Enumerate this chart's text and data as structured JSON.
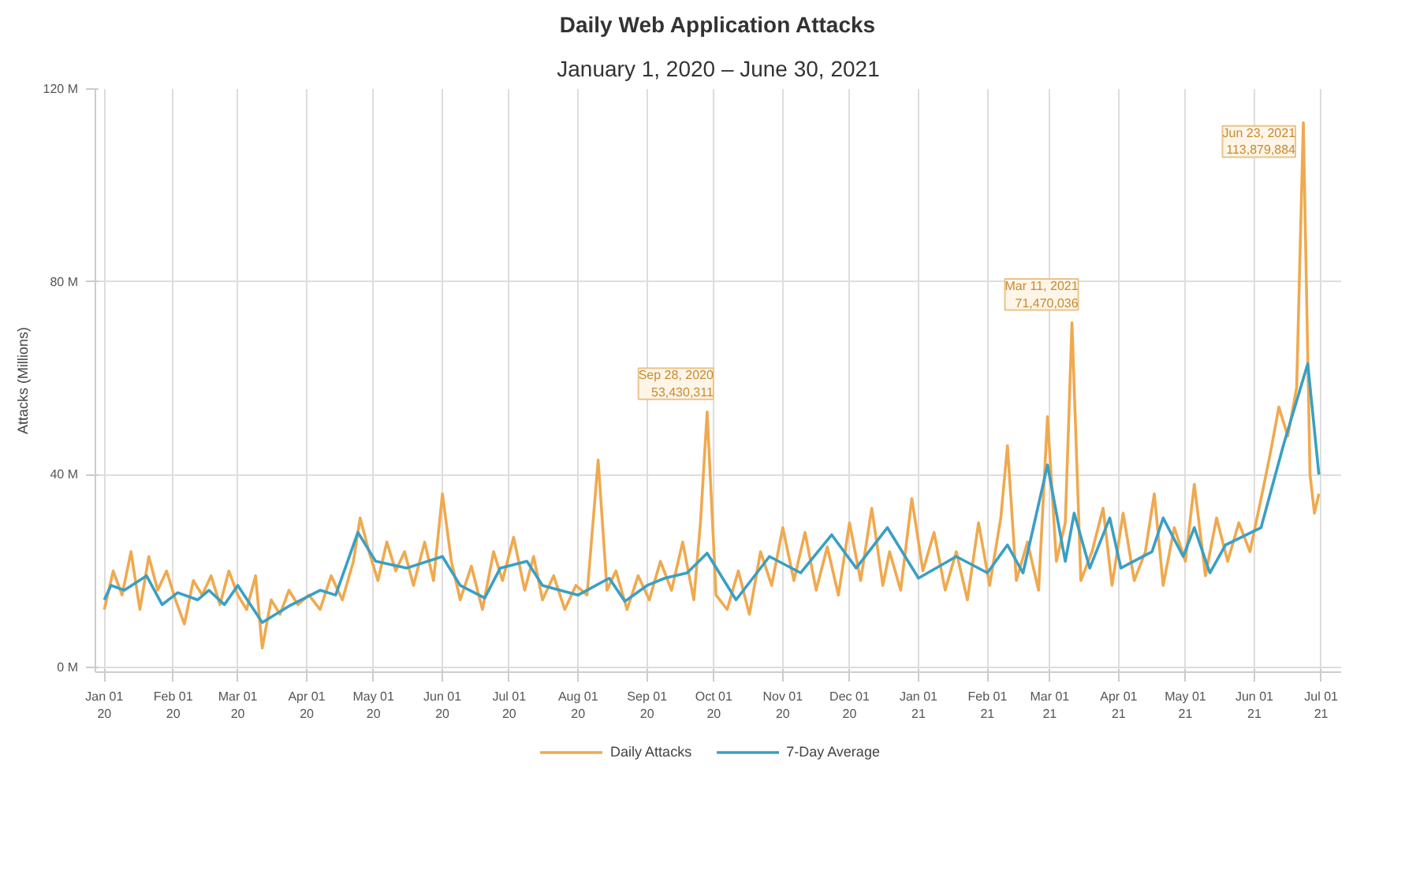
{
  "chart_data": {
    "type": "line",
    "title": "Daily Web Application Attacks",
    "subtitle": "January 1, 2020 – June 30, 2021",
    "ylabel": "Attacks (Millions)",
    "xlim": [
      "2019-12-28",
      "2021-07-10"
    ],
    "ylim": [
      -1,
      120
    ],
    "yticks": [
      {
        "value": 0,
        "label": "0 M"
      },
      {
        "value": 40,
        "label": "40 M"
      },
      {
        "value": 80,
        "label": "80 M"
      },
      {
        "value": 120,
        "label": "120 M"
      }
    ],
    "xticks": [
      {
        "value": "2020-01-01",
        "label": "Jan 01\n20"
      },
      {
        "value": "2020-02-01",
        "label": "Feb 01\n20"
      },
      {
        "value": "2020-03-01",
        "label": "Mar 01\n20"
      },
      {
        "value": "2020-04-01",
        "label": "Apr 01\n20"
      },
      {
        "value": "2020-05-01",
        "label": "May 01\n20"
      },
      {
        "value": "2020-06-01",
        "label": "Jun 01\n20"
      },
      {
        "value": "2020-07-01",
        "label": "Jul 01\n20"
      },
      {
        "value": "2020-08-01",
        "label": "Aug 01\n20"
      },
      {
        "value": "2020-09-01",
        "label": "Sep 01\n20"
      },
      {
        "value": "2020-10-01",
        "label": "Oct 01\n20"
      },
      {
        "value": "2020-11-01",
        "label": "Nov 01\n20"
      },
      {
        "value": "2020-12-01",
        "label": "Dec 01\n20"
      },
      {
        "value": "2021-01-01",
        "label": "Jan 01\n21"
      },
      {
        "value": "2021-02-01",
        "label": "Feb 01\n21"
      },
      {
        "value": "2021-03-01",
        "label": "Mar 01\n21"
      },
      {
        "value": "2021-04-01",
        "label": "Apr 01\n21"
      },
      {
        "value": "2021-05-01",
        "label": "May 01\n21"
      },
      {
        "value": "2021-06-01",
        "label": "Jun 01\n21"
      },
      {
        "value": "2021-07-01",
        "label": "Jul 01\n21"
      }
    ],
    "grid": true,
    "legend": "bottom",
    "line_style": "solid",
    "series": [
      {
        "name": "Daily Attacks",
        "color": "#f0a94e",
        "x": [
          "2020-01-01",
          "2020-01-05",
          "2020-01-09",
          "2020-01-13",
          "2020-01-17",
          "2020-01-21",
          "2020-01-25",
          "2020-01-29",
          "2020-02-02",
          "2020-02-06",
          "2020-02-10",
          "2020-02-14",
          "2020-02-18",
          "2020-02-22",
          "2020-02-26",
          "2020-03-01",
          "2020-03-05",
          "2020-03-09",
          "2020-03-12",
          "2020-03-16",
          "2020-03-20",
          "2020-03-24",
          "2020-03-28",
          "2020-04-02",
          "2020-04-07",
          "2020-04-12",
          "2020-04-17",
          "2020-04-22",
          "2020-04-25",
          "2020-04-29",
          "2020-05-03",
          "2020-05-07",
          "2020-05-11",
          "2020-05-15",
          "2020-05-19",
          "2020-05-24",
          "2020-05-28",
          "2020-06-01",
          "2020-06-05",
          "2020-06-09",
          "2020-06-14",
          "2020-06-19",
          "2020-06-24",
          "2020-06-28",
          "2020-07-03",
          "2020-07-08",
          "2020-07-12",
          "2020-07-16",
          "2020-07-21",
          "2020-07-26",
          "2020-07-31",
          "2020-08-05",
          "2020-08-10",
          "2020-08-14",
          "2020-08-18",
          "2020-08-23",
          "2020-08-28",
          "2020-09-02",
          "2020-09-07",
          "2020-09-12",
          "2020-09-17",
          "2020-09-22",
          "2020-09-25",
          "2020-09-28",
          "2020-10-02",
          "2020-10-07",
          "2020-10-12",
          "2020-10-17",
          "2020-10-22",
          "2020-10-27",
          "2020-11-01",
          "2020-11-06",
          "2020-11-11",
          "2020-11-16",
          "2020-11-21",
          "2020-11-26",
          "2020-12-01",
          "2020-12-06",
          "2020-12-11",
          "2020-12-16",
          "2020-12-19",
          "2020-12-24",
          "2020-12-29",
          "2021-01-03",
          "2021-01-08",
          "2021-01-13",
          "2021-01-18",
          "2021-01-23",
          "2021-01-28",
          "2021-02-02",
          "2021-02-07",
          "2021-02-10",
          "2021-02-14",
          "2021-02-19",
          "2021-02-24",
          "2021-02-28",
          "2021-03-04",
          "2021-03-08",
          "2021-03-11",
          "2021-03-15",
          "2021-03-20",
          "2021-03-25",
          "2021-03-29",
          "2021-04-03",
          "2021-04-08",
          "2021-04-13",
          "2021-04-17",
          "2021-04-21",
          "2021-04-26",
          "2021-05-01",
          "2021-05-05",
          "2021-05-10",
          "2021-05-15",
          "2021-05-20",
          "2021-05-25",
          "2021-05-30",
          "2021-06-04",
          "2021-06-08",
          "2021-06-12",
          "2021-06-16",
          "2021-06-20",
          "2021-06-23",
          "2021-06-26",
          "2021-06-28",
          "2021-06-30"
        ],
        "values": [
          12,
          20,
          15,
          24,
          12,
          23,
          16,
          20,
          14,
          9,
          18,
          15,
          19,
          13,
          20,
          15,
          12,
          19,
          4,
          14,
          11,
          16,
          13,
          15,
          12,
          19,
          14,
          22,
          31,
          24,
          18,
          26,
          20,
          24,
          17,
          26,
          18,
          36,
          22,
          14,
          21,
          12,
          24,
          18,
          27,
          16,
          23,
          14,
          19,
          12,
          17,
          15,
          43,
          16,
          20,
          12,
          19,
          14,
          22,
          16,
          26,
          14,
          30,
          53,
          15,
          12,
          20,
          11,
          24,
          17,
          29,
          18,
          28,
          16,
          25,
          15,
          30,
          18,
          33,
          17,
          24,
          16,
          35,
          20,
          28,
          16,
          24,
          14,
          30,
          17,
          31,
          46,
          18,
          26,
          16,
          52,
          22,
          30,
          71.5,
          18,
          24,
          33,
          17,
          32,
          18,
          24,
          36,
          17,
          29,
          22,
          38,
          19,
          31,
          22,
          30,
          24,
          35,
          44,
          54,
          48,
          58,
          113,
          40,
          32,
          36
        ]
      },
      {
        "name": "7-Day Average",
        "color": "#3a9fc4",
        "x": [
          "2020-01-01",
          "2020-01-04",
          "2020-01-10",
          "2020-01-20",
          "2020-01-27",
          "2020-02-03",
          "2020-02-12",
          "2020-02-17",
          "2020-02-24",
          "2020-03-01",
          "2020-03-12",
          "2020-03-24",
          "2020-04-07",
          "2020-04-14",
          "2020-04-24",
          "2020-05-02",
          "2020-05-16",
          "2020-06-01",
          "2020-06-09",
          "2020-06-20",
          "2020-06-27",
          "2020-07-09",
          "2020-07-16",
          "2020-08-01",
          "2020-08-15",
          "2020-08-22",
          "2020-09-01",
          "2020-09-09",
          "2020-09-19",
          "2020-09-28",
          "2020-10-11",
          "2020-10-26",
          "2020-11-09",
          "2020-11-23",
          "2020-12-04",
          "2020-12-18",
          "2021-01-01",
          "2021-01-18",
          "2021-02-01",
          "2021-02-10",
          "2021-02-17",
          "2021-02-28",
          "2021-03-08",
          "2021-03-12",
          "2021-03-19",
          "2021-03-28",
          "2021-04-02",
          "2021-04-16",
          "2021-04-21",
          "2021-04-30",
          "2021-05-05",
          "2021-05-12",
          "2021-05-19",
          "2021-06-04",
          "2021-06-14",
          "2021-06-25",
          "2021-06-30"
        ],
        "values": [
          14,
          17,
          16,
          19,
          13,
          15.5,
          14,
          16,
          13,
          17,
          9.3,
          12.7,
          16,
          15,
          28,
          22,
          20.6,
          23,
          17,
          14.4,
          20.6,
          22,
          17,
          15,
          18.5,
          13.7,
          17,
          18.5,
          19.6,
          23.7,
          14,
          23,
          19.6,
          27.5,
          20.6,
          29,
          18.5,
          23,
          19.6,
          25.4,
          19.6,
          42,
          22,
          32,
          20.6,
          31,
          20.6,
          24,
          31,
          23,
          29,
          19.6,
          25.4,
          29,
          46,
          63,
          40
        ]
      }
    ],
    "annotations": [
      {
        "text": "Sep 28, 2020\n53,430,311",
        "x": "2020-09-28",
        "y": 53
      },
      {
        "text": "Mar 11, 2021\n71,470,036",
        "x": "2021-03-11",
        "y": 71.5
      },
      {
        "text": "Jun 23, 2021\n113,879,884",
        "x": "2021-06-23",
        "y": 113
      }
    ]
  }
}
